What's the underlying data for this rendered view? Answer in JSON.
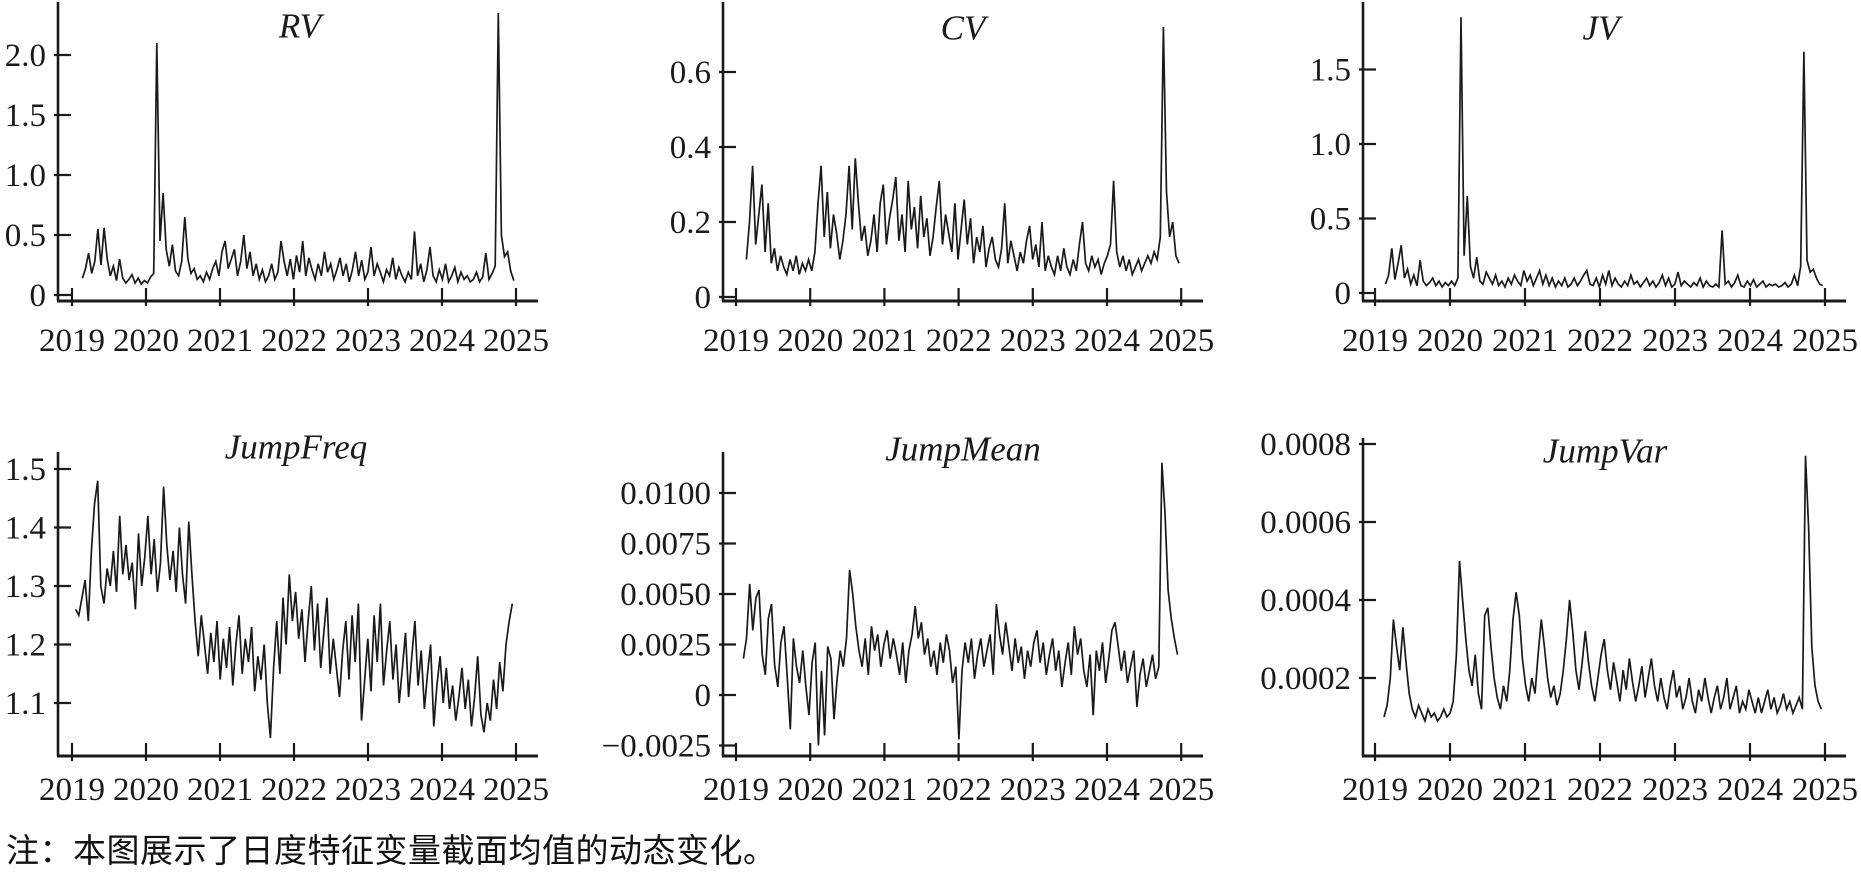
{
  "figure": {
    "note": "注：本图展示了日度特征变量截面均值的动态变化。"
  },
  "chart_data": [
    {
      "id": "rv",
      "type": "line",
      "title": "RV",
      "xlabel": "",
      "ylabel": "",
      "grid": false,
      "legend": "none",
      "x_ticks": [
        "2019",
        "2020",
        "2021",
        "2022",
        "2023",
        "2024",
        "2025"
      ],
      "xlim": [
        2019,
        2025.3
      ],
      "ylim": [
        0,
        2.46
      ],
      "y_ticks": [
        0,
        0.5,
        1.0,
        1.5,
        2.0
      ],
      "y_tick_labels": [
        "0",
        "0.5",
        "1.0",
        "1.5",
        "2.0"
      ],
      "x_start": 2019.14,
      "x_end": 2024.97,
      "values": [
        0.14,
        0.22,
        0.35,
        0.18,
        0.28,
        0.55,
        0.25,
        0.56,
        0.3,
        0.16,
        0.24,
        0.12,
        0.3,
        0.14,
        0.1,
        0.13,
        0.17,
        0.1,
        0.14,
        0.09,
        0.12,
        0.1,
        0.15,
        0.18,
        2.1,
        0.45,
        0.85,
        0.38,
        0.24,
        0.42,
        0.2,
        0.16,
        0.28,
        0.65,
        0.3,
        0.18,
        0.22,
        0.13,
        0.16,
        0.11,
        0.19,
        0.13,
        0.22,
        0.28,
        0.16,
        0.36,
        0.45,
        0.22,
        0.3,
        0.38,
        0.16,
        0.28,
        0.5,
        0.22,
        0.36,
        0.16,
        0.26,
        0.13,
        0.21,
        0.11,
        0.16,
        0.26,
        0.13,
        0.19,
        0.45,
        0.28,
        0.16,
        0.3,
        0.13,
        0.33,
        0.19,
        0.45,
        0.16,
        0.31,
        0.21,
        0.13,
        0.26,
        0.16,
        0.36,
        0.19,
        0.26,
        0.13,
        0.21,
        0.31,
        0.16,
        0.26,
        0.11,
        0.21,
        0.36,
        0.16,
        0.29,
        0.13,
        0.19,
        0.4,
        0.16,
        0.26,
        0.19,
        0.11,
        0.21,
        0.16,
        0.31,
        0.13,
        0.23,
        0.16,
        0.11,
        0.19,
        0.13,
        0.53,
        0.16,
        0.26,
        0.11,
        0.21,
        0.4,
        0.16,
        0.11,
        0.21,
        0.13,
        0.26,
        0.11,
        0.16,
        0.23,
        0.11,
        0.19,
        0.13,
        0.16,
        0.11,
        0.13,
        0.19,
        0.11,
        0.15,
        0.35,
        0.13,
        0.18,
        0.24,
        2.35,
        0.5,
        0.32,
        0.36,
        0.2,
        0.12
      ]
    },
    {
      "id": "cv",
      "type": "line",
      "title": "CV",
      "xlabel": "",
      "ylabel": "",
      "grid": false,
      "legend": "none",
      "x_ticks": [
        "2019",
        "2020",
        "2021",
        "2022",
        "2023",
        "2024",
        "2025"
      ],
      "xlim": [
        2019,
        2025.3
      ],
      "ylim": [
        0,
        0.79
      ],
      "y_ticks": [
        0,
        0.2,
        0.4,
        0.6
      ],
      "y_tick_labels": [
        "0",
        "0.2",
        "0.4",
        "0.6"
      ],
      "x_start": 2019.14,
      "x_end": 2024.97,
      "values": [
        0.1,
        0.2,
        0.35,
        0.14,
        0.22,
        0.3,
        0.12,
        0.25,
        0.09,
        0.13,
        0.07,
        0.11,
        0.08,
        0.06,
        0.1,
        0.07,
        0.11,
        0.06,
        0.09,
        0.07,
        0.1,
        0.07,
        0.12,
        0.25,
        0.35,
        0.16,
        0.28,
        0.13,
        0.22,
        0.17,
        0.1,
        0.15,
        0.22,
        0.35,
        0.18,
        0.37,
        0.25,
        0.15,
        0.19,
        0.11,
        0.15,
        0.22,
        0.12,
        0.25,
        0.3,
        0.14,
        0.21,
        0.26,
        0.32,
        0.15,
        0.22,
        0.12,
        0.31,
        0.18,
        0.24,
        0.13,
        0.27,
        0.16,
        0.21,
        0.11,
        0.16,
        0.24,
        0.31,
        0.14,
        0.22,
        0.17,
        0.12,
        0.25,
        0.1,
        0.18,
        0.26,
        0.14,
        0.21,
        0.09,
        0.16,
        0.12,
        0.19,
        0.08,
        0.13,
        0.16,
        0.1,
        0.08,
        0.13,
        0.25,
        0.09,
        0.15,
        0.11,
        0.07,
        0.12,
        0.09,
        0.15,
        0.19,
        0.1,
        0.14,
        0.08,
        0.2,
        0.07,
        0.11,
        0.08,
        0.06,
        0.11,
        0.07,
        0.13,
        0.08,
        0.06,
        0.1,
        0.07,
        0.14,
        0.2,
        0.09,
        0.07,
        0.11,
        0.08,
        0.1,
        0.06,
        0.09,
        0.11,
        0.14,
        0.31,
        0.12,
        0.08,
        0.11,
        0.07,
        0.1,
        0.06,
        0.08,
        0.1,
        0.07,
        0.09,
        0.11,
        0.09,
        0.12,
        0.1,
        0.16,
        0.72,
        0.28,
        0.16,
        0.2,
        0.11,
        0.09
      ]
    },
    {
      "id": "jv",
      "type": "line",
      "title": "JV",
      "xlabel": "",
      "ylabel": "",
      "grid": false,
      "legend": "none",
      "x_ticks": [
        "2019",
        "2020",
        "2021",
        "2022",
        "2023",
        "2024",
        "2025"
      ],
      "xlim": [
        2019,
        2025.3
      ],
      "ylim": [
        0,
        1.97
      ],
      "y_ticks": [
        0,
        0.5,
        1.0,
        1.5
      ],
      "y_tick_labels": [
        "0",
        "0.5",
        "1.0",
        "1.5"
      ],
      "x_start": 2019.14,
      "x_end": 2024.97,
      "values": [
        0.06,
        0.12,
        0.3,
        0.09,
        0.2,
        0.32,
        0.1,
        0.16,
        0.06,
        0.12,
        0.05,
        0.22,
        0.08,
        0.05,
        0.07,
        0.1,
        0.05,
        0.08,
        0.04,
        0.07,
        0.05,
        0.08,
        0.05,
        0.1,
        1.85,
        0.25,
        0.65,
        0.18,
        0.1,
        0.24,
        0.08,
        0.06,
        0.14,
        0.1,
        0.06,
        0.12,
        0.05,
        0.08,
        0.04,
        0.1,
        0.06,
        0.12,
        0.08,
        0.05,
        0.15,
        0.08,
        0.12,
        0.05,
        0.1,
        0.15,
        0.06,
        0.12,
        0.05,
        0.1,
        0.04,
        0.08,
        0.05,
        0.1,
        0.04,
        0.06,
        0.1,
        0.05,
        0.08,
        0.12,
        0.15,
        0.06,
        0.05,
        0.1,
        0.04,
        0.12,
        0.06,
        0.15,
        0.05,
        0.1,
        0.06,
        0.04,
        0.08,
        0.05,
        0.12,
        0.06,
        0.08,
        0.04,
        0.07,
        0.1,
        0.05,
        0.08,
        0.04,
        0.07,
        0.12,
        0.05,
        0.1,
        0.04,
        0.06,
        0.14,
        0.05,
        0.08,
        0.06,
        0.04,
        0.07,
        0.05,
        0.1,
        0.04,
        0.08,
        0.05,
        0.04,
        0.06,
        0.04,
        0.42,
        0.06,
        0.08,
        0.04,
        0.07,
        0.12,
        0.05,
        0.04,
        0.08,
        0.05,
        0.09,
        0.04,
        0.06,
        0.08,
        0.04,
        0.06,
        0.05,
        0.06,
        0.04,
        0.05,
        0.07,
        0.04,
        0.06,
        0.12,
        0.05,
        0.18,
        1.62,
        0.22,
        0.14,
        0.16,
        0.1,
        0.06,
        0.05
      ]
    },
    {
      "id": "jumpfreq",
      "type": "line",
      "title": "JumpFreq",
      "xlabel": "",
      "ylabel": "",
      "grid": false,
      "legend": "none",
      "x_ticks": [
        "2019",
        "2020",
        "2021",
        "2022",
        "2023",
        "2024",
        "2025"
      ],
      "xlim": [
        2019,
        2025.3
      ],
      "ylim": [
        1.02,
        1.52
      ],
      "y_ticks": [
        1.1,
        1.2,
        1.3,
        1.4,
        1.5
      ],
      "y_tick_labels": [
        "1.1",
        "1.2",
        "1.3",
        "1.4",
        "1.5"
      ],
      "x_start": 2019.05,
      "x_end": 2024.95,
      "values": [
        1.26,
        1.25,
        1.28,
        1.31,
        1.24,
        1.36,
        1.44,
        1.48,
        1.3,
        1.27,
        1.33,
        1.3,
        1.36,
        1.29,
        1.42,
        1.32,
        1.37,
        1.31,
        1.34,
        1.26,
        1.39,
        1.3,
        1.35,
        1.42,
        1.32,
        1.38,
        1.29,
        1.34,
        1.47,
        1.37,
        1.31,
        1.36,
        1.29,
        1.4,
        1.32,
        1.27,
        1.41,
        1.32,
        1.24,
        1.18,
        1.25,
        1.2,
        1.15,
        1.22,
        1.17,
        1.24,
        1.14,
        1.21,
        1.16,
        1.23,
        1.13,
        1.2,
        1.25,
        1.15,
        1.21,
        1.17,
        1.23,
        1.12,
        1.18,
        1.14,
        1.2,
        1.1,
        1.04,
        1.16,
        1.24,
        1.15,
        1.28,
        1.2,
        1.32,
        1.24,
        1.29,
        1.21,
        1.26,
        1.17,
        1.24,
        1.3,
        1.19,
        1.27,
        1.16,
        1.22,
        1.28,
        1.15,
        1.21,
        1.16,
        1.11,
        1.19,
        1.24,
        1.14,
        1.25,
        1.17,
        1.27,
        1.07,
        1.14,
        1.21,
        1.12,
        1.25,
        1.17,
        1.27,
        1.13,
        1.19,
        1.24,
        1.14,
        1.2,
        1.1,
        1.16,
        1.22,
        1.11,
        1.18,
        1.24,
        1.13,
        1.19,
        1.09,
        1.15,
        1.2,
        1.06,
        1.13,
        1.18,
        1.1,
        1.16,
        1.09,
        1.13,
        1.07,
        1.11,
        1.16,
        1.09,
        1.14,
        1.06,
        1.11,
        1.18,
        1.08,
        1.05,
        1.1,
        1.07,
        1.14,
        1.09,
        1.17,
        1.12,
        1.2,
        1.24,
        1.27
      ]
    },
    {
      "id": "jumpmean",
      "type": "line",
      "title": "JumpMean",
      "xlabel": "",
      "ylabel": "",
      "grid": false,
      "legend": "none",
      "x_ticks": [
        "2019",
        "2020",
        "2021",
        "2022",
        "2023",
        "2024",
        "2025"
      ],
      "xlim": [
        2019,
        2025.3
      ],
      "ylim": [
        -0.003,
        0.0121
      ],
      "y_ticks": [
        -0.0025,
        0,
        0.0025,
        0.005,
        0.0075,
        0.01
      ],
      "y_tick_labels": [
        "−0.0025",
        "0",
        "0.0025",
        "0.0050",
        "0.0075",
        "0.0100"
      ],
      "x_start": 2019.1,
      "x_end": 2024.95,
      "values": [
        0.0018,
        0.0028,
        0.0055,
        0.0032,
        0.0048,
        0.0052,
        0.002,
        0.001,
        0.0038,
        0.0045,
        0.0015,
        0.0004,
        0.0026,
        0.0034,
        0.001,
        -0.0017,
        0.0028,
        0.0014,
        0.0006,
        0.0022,
        0.0004,
        -0.001,
        0.0016,
        0.0026,
        -0.0025,
        0.0012,
        -0.002,
        0.0024,
        0.0018,
        -0.0012,
        0.0008,
        0.0022,
        0.0014,
        0.0028,
        0.0062,
        0.005,
        0.0034,
        0.0022,
        0.0014,
        0.0028,
        0.001,
        0.0034,
        0.0022,
        0.003,
        0.0014,
        0.0025,
        0.0032,
        0.0018,
        0.0028,
        0.002,
        0.001,
        0.0026,
        0.0006,
        0.0022,
        0.003,
        0.0044,
        0.0028,
        0.0036,
        0.002,
        0.0028,
        0.0014,
        0.0022,
        0.001,
        0.0026,
        0.0016,
        0.003,
        0.0022,
        0.0006,
        0.0014,
        -0.0022,
        0.0012,
        0.0026,
        0.0016,
        0.0028,
        0.0008,
        0.002,
        0.0028,
        0.0014,
        0.0022,
        0.003,
        0.001,
        0.0045,
        0.003,
        0.002,
        0.0036,
        0.0024,
        0.0012,
        0.0028,
        0.0016,
        0.0024,
        0.0008,
        0.0022,
        0.0014,
        0.0026,
        0.0032,
        0.0016,
        0.0026,
        0.001,
        0.002,
        0.0028,
        0.0012,
        0.0022,
        0.0004,
        0.0016,
        0.0026,
        0.001,
        0.0034,
        0.002,
        0.0028,
        0.0012,
        0.0004,
        0.002,
        -0.001,
        0.0022,
        0.0012,
        0.0026,
        0.0006,
        0.0018,
        0.0032,
        0.0036,
        0.0024,
        0.0012,
        0.0022,
        0.0006,
        0.0014,
        0.0022,
        -0.0006,
        0.001,
        0.0018,
        0.0004,
        0.0012,
        0.002,
        0.0008,
        0.0014,
        0.0115,
        0.009,
        0.0052,
        0.0038,
        0.0028,
        0.002
      ]
    },
    {
      "id": "jumpvar",
      "type": "line",
      "title": "JumpVar",
      "xlabel": "",
      "ylabel": "",
      "grid": false,
      "legend": "none",
      "x_ticks": [
        "2019",
        "2020",
        "2021",
        "2022",
        "2023",
        "2024",
        "2025"
      ],
      "xlim": [
        2019,
        2025.3
      ],
      "ylim": [
        0,
        0.00082
      ],
      "y_ticks": [
        0.0002,
        0.0004,
        0.0006,
        0.0008
      ],
      "y_tick_labels": [
        "0.0002",
        "0.0004",
        "0.0006",
        "0.0008"
      ],
      "x_start": 2019.12,
      "x_end": 2024.95,
      "values": [
        0.0001,
        0.00013,
        0.0002,
        0.00035,
        0.00028,
        0.00022,
        0.00033,
        0.00024,
        0.00016,
        0.00012,
        0.0001,
        0.00013,
        0.00011,
        9e-05,
        0.00012,
        0.0001,
        0.00011,
        9e-05,
        0.0001,
        0.00012,
        0.0001,
        0.00011,
        0.00014,
        0.00026,
        0.0005,
        0.0004,
        0.0003,
        0.00022,
        0.00018,
        0.00026,
        0.00016,
        0.00012,
        0.00036,
        0.00038,
        0.00028,
        0.0002,
        0.00015,
        0.00012,
        0.00018,
        0.00014,
        0.00022,
        0.00035,
        0.00042,
        0.00036,
        0.00025,
        0.00018,
        0.00014,
        0.0002,
        0.00016,
        0.00026,
        0.00035,
        0.00028,
        0.0002,
        0.00015,
        0.00018,
        0.00013,
        0.00016,
        0.00022,
        0.0003,
        0.0004,
        0.00032,
        0.00022,
        0.00017,
        0.00024,
        0.00032,
        0.00024,
        0.00018,
        0.00014,
        0.0002,
        0.00026,
        0.0003,
        0.00022,
        0.00017,
        0.00024,
        0.00019,
        0.00014,
        0.00022,
        0.00017,
        0.00025,
        0.00019,
        0.00014,
        0.00018,
        0.00023,
        0.00015,
        0.0002,
        0.00025,
        0.00018,
        0.00014,
        0.0002,
        0.00015,
        0.00012,
        0.00018,
        0.00022,
        0.00015,
        0.00018,
        0.00012,
        0.00015,
        0.0002,
        0.00014,
        0.00011,
        0.00017,
        0.00014,
        0.0002,
        0.00015,
        0.00011,
        0.00015,
        0.00018,
        0.00012,
        0.00015,
        0.0002,
        0.00012,
        0.00015,
        0.00018,
        0.00011,
        0.00014,
        0.00012,
        0.00017,
        0.00014,
        0.00011,
        0.00015,
        0.00011,
        0.00014,
        0.00017,
        0.00012,
        0.00015,
        0.00011,
        0.00013,
        0.00016,
        0.00012,
        0.00014,
        0.00011,
        0.00013,
        0.00015,
        0.00012,
        0.00077,
        0.00058,
        0.00028,
        0.00018,
        0.00014,
        0.00012
      ]
    }
  ]
}
